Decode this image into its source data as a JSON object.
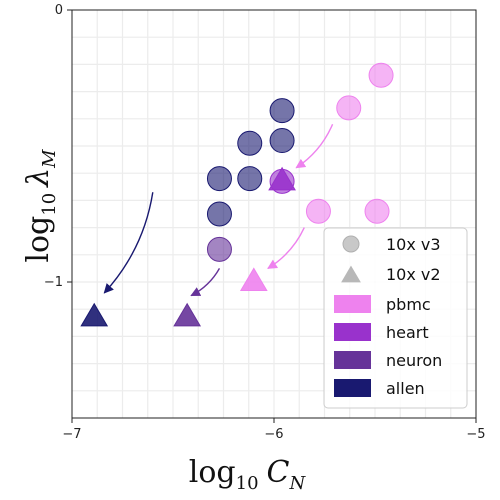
{
  "chart_data": {
    "type": "scatter",
    "xlabel_main": "log",
    "xlabel_sub": "10",
    "xlabel_var": "C",
    "xlabel_var_sub": "N",
    "ylabel_main": "log",
    "ylabel_sub": "10",
    "ylabel_var": "λ",
    "ylabel_var_sub": "M",
    "xlim": [
      -7,
      -5
    ],
    "ylim": [
      -1.5,
      0
    ],
    "xticks": [
      -7,
      -6,
      -5
    ],
    "yticks": [
      0,
      -1
    ],
    "xtick_labels": [
      "−7",
      "−6",
      "−5"
    ],
    "ytick_labels": [
      "0",
      "−1"
    ],
    "grid": true,
    "legend_position": "bottom-right",
    "legend_markers": [
      {
        "label": "10x v3",
        "marker": "circle"
      },
      {
        "label": "10x v2",
        "marker": "triangle"
      }
    ],
    "legend_datasets": [
      {
        "label": "pbmc",
        "color": "#ee82ee"
      },
      {
        "label": "heart",
        "color": "#9932cc"
      },
      {
        "label": "neuron",
        "color": "#663399"
      },
      {
        "label": "allen",
        "color": "#191970"
      }
    ],
    "series": [
      {
        "dataset": "pbmc",
        "marker": "circle",
        "color": "#ee82ee",
        "points": [
          [
            -5.47,
            -0.24
          ],
          [
            -5.63,
            -0.36
          ],
          [
            -5.78,
            -0.74
          ],
          [
            -5.49,
            -0.74
          ]
        ]
      },
      {
        "dataset": "pbmc",
        "marker": "triangle",
        "color": "#ee82ee",
        "points": [
          [
            -6.1,
            -1.0
          ]
        ]
      },
      {
        "dataset": "heart",
        "marker": "circle",
        "color": "#9932cc",
        "points": [
          [
            -5.96,
            -0.63
          ]
        ]
      },
      {
        "dataset": "heart",
        "marker": "triangle",
        "color": "#9932cc",
        "points": [
          [
            -5.96,
            -0.63
          ]
        ]
      },
      {
        "dataset": "neuron",
        "marker": "circle",
        "color": "#663399",
        "points": [
          [
            -6.27,
            -0.88
          ]
        ]
      },
      {
        "dataset": "neuron",
        "marker": "triangle",
        "color": "#663399",
        "points": [
          [
            -6.43,
            -1.13
          ]
        ]
      },
      {
        "dataset": "allen",
        "marker": "circle",
        "color": "#191970",
        "points": [
          [
            -5.96,
            -0.37
          ],
          [
            -5.96,
            -0.48
          ],
          [
            -6.12,
            -0.49
          ],
          [
            -6.27,
            -0.62
          ],
          [
            -6.12,
            -0.62
          ],
          [
            -6.27,
            -0.75
          ]
        ]
      },
      {
        "dataset": "allen",
        "marker": "triangle",
        "color": "#191970",
        "points": [
          [
            -6.89,
            -1.13
          ]
        ]
      }
    ],
    "arrows": [
      {
        "dataset": "pbmc",
        "color": "#ee82ee",
        "from": [
          -5.71,
          -0.42
        ],
        "to": [
          -5.89,
          -0.58
        ]
      },
      {
        "dataset": "pbmc",
        "color": "#ee82ee",
        "from": [
          -5.85,
          -0.8
        ],
        "to": [
          -6.03,
          -0.95
        ]
      },
      {
        "dataset": "neuron",
        "color": "#663399",
        "from": [
          -6.27,
          -0.95
        ],
        "to": [
          -6.41,
          -1.05
        ]
      },
      {
        "dataset": "allen",
        "color": "#191970",
        "from": [
          -6.6,
          -0.67
        ],
        "to": [
          -6.84,
          -1.04
        ]
      }
    ]
  }
}
